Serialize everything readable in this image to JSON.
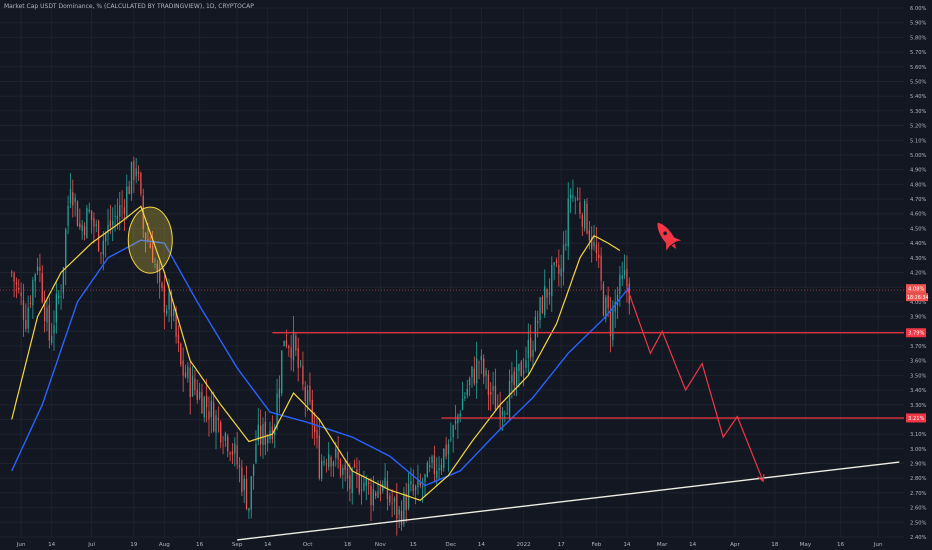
{
  "chart_title": "Market Cap USDT Dominance, % (CALCULATED BY TRADINGVIEW), 1D, CRYPTOCAP",
  "colors": {
    "background": "#131722",
    "grid": "#1e222d",
    "up": "#26a69a",
    "down": "#ef5350",
    "ema_fast": "#f5d742",
    "ema_slow": "#2962ff",
    "support": "#f23645",
    "trendline": "#f0efe6",
    "axis_text": "#b2b5be",
    "arrow": "#f23645"
  },
  "chart_data": {
    "type": "candlestick",
    "title": "Market Cap USDT Dominance, % (CALCULATED BY TRADINGVIEW), 1D, CRYPTOCAP",
    "y_axis": {
      "min": 2.4,
      "max": 6.0,
      "unit": "%",
      "ticks": [
        "6.00%",
        "5.90%",
        "5.80%",
        "5.70%",
        "5.60%",
        "5.50%",
        "5.40%",
        "5.30%",
        "5.20%",
        "5.10%",
        "5.00%",
        "4.90%",
        "4.80%",
        "4.70%",
        "4.60%",
        "4.50%",
        "4.40%",
        "4.30%",
        "4.20%",
        "4.10%",
        "4.00%",
        "3.90%",
        "3.80%",
        "3.70%",
        "3.60%",
        "3.50%",
        "3.40%",
        "3.30%",
        "3.20%",
        "3.10%",
        "3.00%",
        "2.90%",
        "2.80%",
        "2.70%",
        "2.60%",
        "2.50%",
        "2.40%"
      ]
    },
    "x_axis": {
      "ticks": [
        "Jun",
        "14",
        "Jul",
        "19",
        "Aug",
        "16",
        "Sep",
        "14",
        "Oct",
        "18",
        "Nov",
        "15",
        "Dec",
        "14",
        "2022",
        "17",
        "Feb",
        "14",
        "Mar",
        "14",
        "Apr",
        "18",
        "May",
        "16",
        "Jun"
      ]
    },
    "current_price_label": "4.08%",
    "countdown_label": "18:26:34",
    "support_levels": [
      {
        "value": 3.79,
        "label": "3.79%"
      },
      {
        "value": 3.21,
        "label": "3.21%"
      }
    ],
    "price_anchors": [
      {
        "date": "2021-05-28",
        "value": 4.2
      },
      {
        "date": "2021-06-03",
        "value": 3.9
      },
      {
        "date": "2021-06-08",
        "value": 4.3
      },
      {
        "date": "2021-06-13",
        "value": 3.75
      },
      {
        "date": "2021-06-18",
        "value": 4.1
      },
      {
        "date": "2021-06-22",
        "value": 4.85
      },
      {
        "date": "2021-06-26",
        "value": 4.5
      },
      {
        "date": "2021-06-30",
        "value": 4.6
      },
      {
        "date": "2021-07-05",
        "value": 4.4
      },
      {
        "date": "2021-07-10",
        "value": 4.55
      },
      {
        "date": "2021-07-14",
        "value": 4.65
      },
      {
        "date": "2021-07-20",
        "value": 4.95
      },
      {
        "date": "2021-07-23",
        "value": 4.5
      },
      {
        "date": "2021-07-27",
        "value": 4.35
      },
      {
        "date": "2021-07-30",
        "value": 4.05
      },
      {
        "date": "2021-08-04",
        "value": 3.95
      },
      {
        "date": "2021-08-08",
        "value": 3.55
      },
      {
        "date": "2021-08-12",
        "value": 3.45
      },
      {
        "date": "2021-08-17",
        "value": 3.35
      },
      {
        "date": "2021-08-21",
        "value": 3.25
      },
      {
        "date": "2021-08-25",
        "value": 3.15
      },
      {
        "date": "2021-08-29",
        "value": 3.05
      },
      {
        "date": "2021-09-02",
        "value": 2.85
      },
      {
        "date": "2021-09-06",
        "value": 2.62
      },
      {
        "date": "2021-09-09",
        "value": 3.05
      },
      {
        "date": "2021-09-13",
        "value": 3.1
      },
      {
        "date": "2021-09-17",
        "value": 3.2
      },
      {
        "date": "2021-09-21",
        "value": 3.78
      },
      {
        "date": "2021-09-25",
        "value": 3.7
      },
      {
        "date": "2021-09-29",
        "value": 3.4
      },
      {
        "date": "2021-10-03",
        "value": 3.2
      },
      {
        "date": "2021-10-06",
        "value": 2.9
      },
      {
        "date": "2021-10-10",
        "value": 3.0
      },
      {
        "date": "2021-10-14",
        "value": 2.9
      },
      {
        "date": "2021-10-19",
        "value": 2.75
      },
      {
        "date": "2021-10-24",
        "value": 2.8
      },
      {
        "date": "2021-10-28",
        "value": 2.7
      },
      {
        "date": "2021-11-01",
        "value": 2.75
      },
      {
        "date": "2021-11-05",
        "value": 2.65
      },
      {
        "date": "2021-11-09",
        "value": 2.55
      },
      {
        "date": "2021-11-13",
        "value": 2.7
      },
      {
        "date": "2021-11-17",
        "value": 2.7
      },
      {
        "date": "2021-11-21",
        "value": 2.8
      },
      {
        "date": "2021-11-25",
        "value": 2.9
      },
      {
        "date": "2021-11-29",
        "value": 3.0
      },
      {
        "date": "2021-12-03",
        "value": 3.15
      },
      {
        "date": "2021-12-05",
        "value": 3.3
      },
      {
        "date": "2021-12-09",
        "value": 3.45
      },
      {
        "date": "2021-12-13",
        "value": 3.6
      },
      {
        "date": "2021-12-17",
        "value": 3.4
      },
      {
        "date": "2021-12-21",
        "value": 3.3
      },
      {
        "date": "2021-12-25",
        "value": 3.35
      },
      {
        "date": "2021-12-29",
        "value": 3.45
      },
      {
        "date": "2022-01-01",
        "value": 3.6
      },
      {
        "date": "2022-01-05",
        "value": 3.75
      },
      {
        "date": "2022-01-09",
        "value": 4.0
      },
      {
        "date": "2022-01-13",
        "value": 4.15
      },
      {
        "date": "2022-01-17",
        "value": 4.2
      },
      {
        "date": "2022-01-21",
        "value": 4.75
      },
      {
        "date": "2022-01-25",
        "value": 4.65
      },
      {
        "date": "2022-01-28",
        "value": 4.55
      },
      {
        "date": "2022-02-01",
        "value": 4.3
      },
      {
        "date": "2022-02-04",
        "value": 4.0
      },
      {
        "date": "2022-02-07",
        "value": 3.85
      },
      {
        "date": "2022-02-10",
        "value": 4.05
      },
      {
        "date": "2022-02-13",
        "value": 4.15
      },
      {
        "date": "2022-02-15",
        "value": 4.08
      }
    ],
    "ema_fast_anchors": [
      {
        "date": "2021-05-28",
        "value": 3.2
      },
      {
        "date": "2021-06-08",
        "value": 3.9
      },
      {
        "date": "2021-06-18",
        "value": 4.2
      },
      {
        "date": "2021-07-01",
        "value": 4.4
      },
      {
        "date": "2021-07-14",
        "value": 4.55
      },
      {
        "date": "2021-07-22",
        "value": 4.65
      },
      {
        "date": "2021-08-01",
        "value": 4.2
      },
      {
        "date": "2021-08-12",
        "value": 3.6
      },
      {
        "date": "2021-08-25",
        "value": 3.3
      },
      {
        "date": "2021-09-06",
        "value": 3.05
      },
      {
        "date": "2021-09-16",
        "value": 3.1
      },
      {
        "date": "2021-09-25",
        "value": 3.38
      },
      {
        "date": "2021-10-06",
        "value": 3.2
      },
      {
        "date": "2021-10-20",
        "value": 2.85
      },
      {
        "date": "2021-11-05",
        "value": 2.72
      },
      {
        "date": "2021-11-18",
        "value": 2.65
      },
      {
        "date": "2021-11-30",
        "value": 2.82
      },
      {
        "date": "2021-12-10",
        "value": 3.05
      },
      {
        "date": "2021-12-22",
        "value": 3.3
      },
      {
        "date": "2022-01-03",
        "value": 3.5
      },
      {
        "date": "2022-01-15",
        "value": 3.85
      },
      {
        "date": "2022-01-25",
        "value": 4.3
      },
      {
        "date": "2022-01-31",
        "value": 4.45
      },
      {
        "date": "2022-02-06",
        "value": 4.4
      },
      {
        "date": "2022-02-11",
        "value": 4.35
      }
    ],
    "ema_slow_anchors": [
      {
        "date": "2021-05-28",
        "value": 2.85
      },
      {
        "date": "2021-06-10",
        "value": 3.3
      },
      {
        "date": "2021-06-25",
        "value": 4.0
      },
      {
        "date": "2021-07-08",
        "value": 4.3
      },
      {
        "date": "2021-07-22",
        "value": 4.42
      },
      {
        "date": "2021-08-01",
        "value": 4.4
      },
      {
        "date": "2021-08-15",
        "value": 4.0
      },
      {
        "date": "2021-09-01",
        "value": 3.55
      },
      {
        "date": "2021-09-15",
        "value": 3.25
      },
      {
        "date": "2021-10-01",
        "value": 3.18
      },
      {
        "date": "2021-10-20",
        "value": 3.08
      },
      {
        "date": "2021-11-05",
        "value": 2.95
      },
      {
        "date": "2021-11-20",
        "value": 2.75
      },
      {
        "date": "2021-12-05",
        "value": 2.85
      },
      {
        "date": "2021-12-20",
        "value": 3.1
      },
      {
        "date": "2022-01-05",
        "value": 3.35
      },
      {
        "date": "2022-01-20",
        "value": 3.65
      },
      {
        "date": "2022-02-05",
        "value": 3.9
      },
      {
        "date": "2022-02-15",
        "value": 4.1
      }
    ],
    "projection_path": [
      {
        "date": "2022-02-14",
        "value": 4.1
      },
      {
        "date": "2022-02-24",
        "value": 3.65
      },
      {
        "date": "2022-03-01",
        "value": 3.8
      },
      {
        "date": "2022-03-11",
        "value": 3.4
      },
      {
        "date": "2022-03-18",
        "value": 3.58
      },
      {
        "date": "2022-03-27",
        "value": 3.08
      },
      {
        "date": "2022-04-02",
        "value": 3.22
      },
      {
        "date": "2022-04-13",
        "value": 2.78
      }
    ],
    "trendline": [
      {
        "date": "2021-09-01",
        "value": 2.38
      },
      {
        "date": "2022-06-10",
        "value": 2.91
      }
    ],
    "ellipse_highlight": {
      "date": "2021-07-26",
      "value": 4.42
    },
    "rocket_marker": {
      "date": "2022-03-03",
      "value": 4.45
    }
  }
}
